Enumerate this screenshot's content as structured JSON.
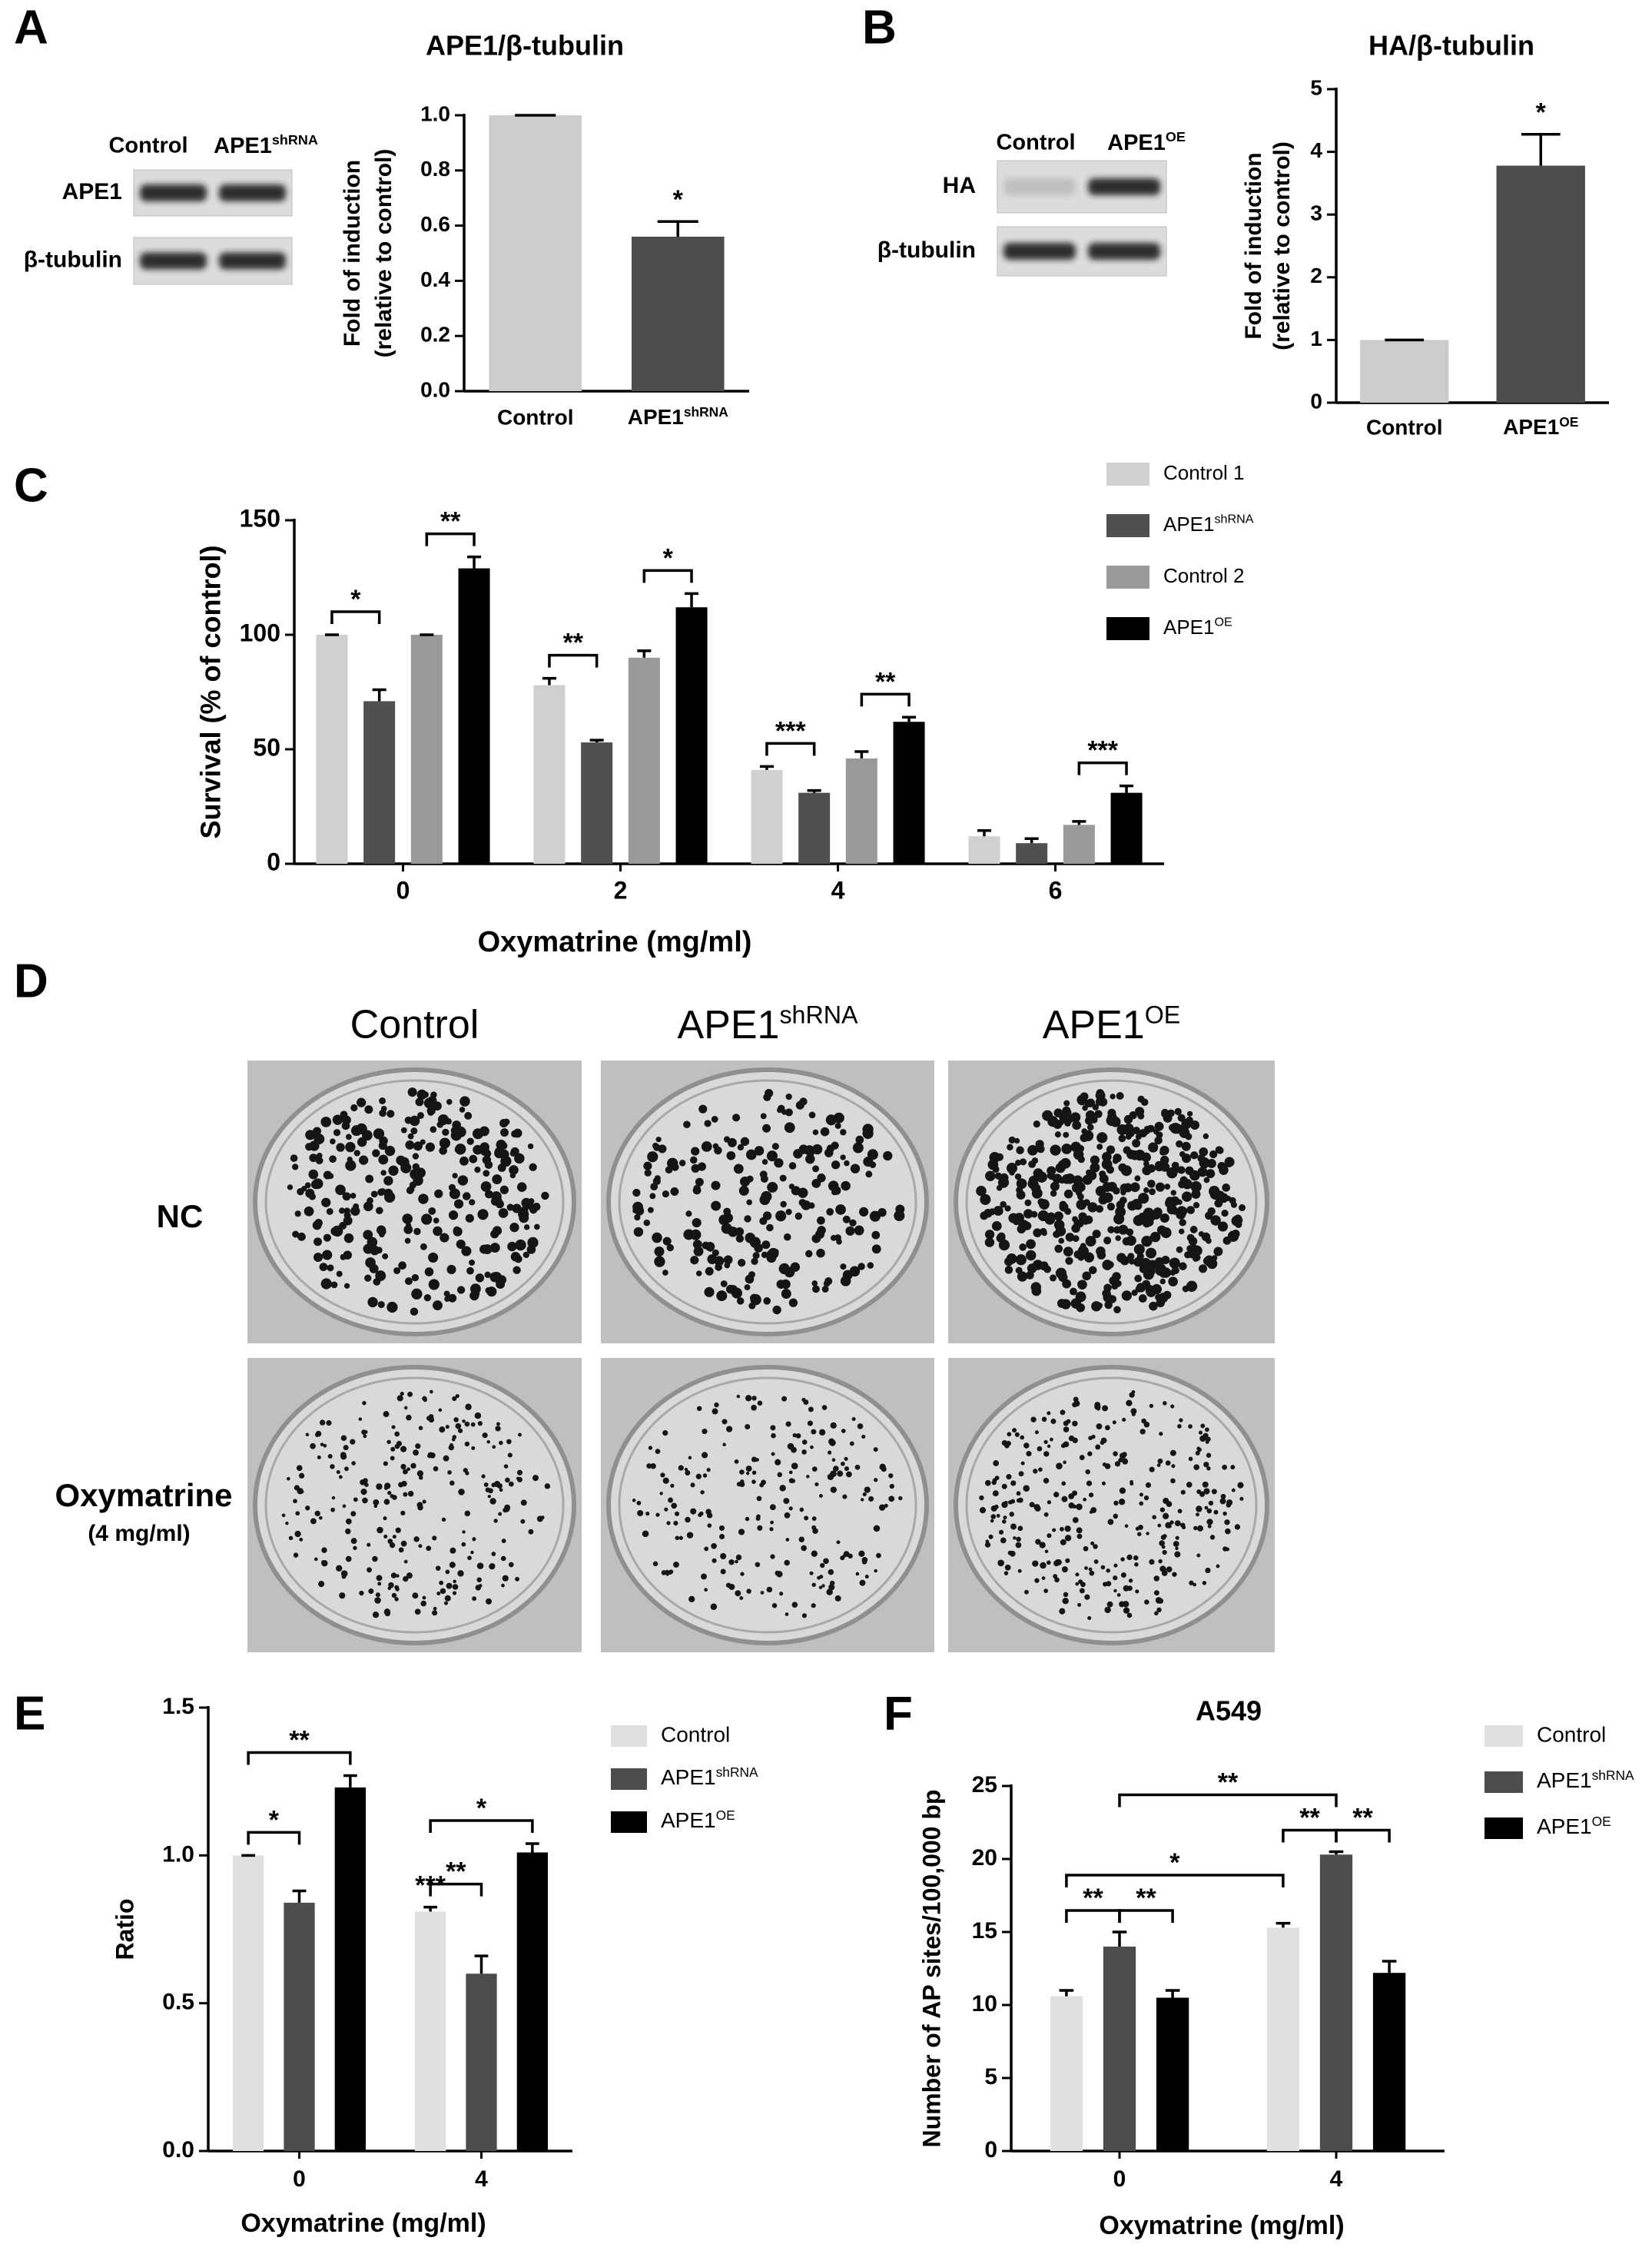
{
  "panels": [
    "A",
    "B",
    "C",
    "D",
    "E",
    "F"
  ],
  "blots": [
    {
      "lanes": [
        "Control",
        {
          "text": "APE1",
          "sup": "shRNA"
        }
      ],
      "rows": [
        "APE1",
        "β-tubulin"
      ]
    },
    {
      "lanes": [
        "Control",
        {
          "text": "APE1",
          "sup": "OE"
        }
      ],
      "rows": [
        "HA",
        "β-tubulin"
      ]
    }
  ],
  "plates": {
    "columns": [
      "Control",
      {
        "text": "APE1",
        "sup": "shRNA"
      },
      {
        "text": "APE1",
        "sup": "OE"
      }
    ],
    "rows": [
      "NC",
      [
        "Oxymatrine",
        "(4 mg/ml)"
      ]
    ]
  },
  "chart_data": [
    {
      "type": "bar",
      "title": "APE1/β-tubulin",
      "ylabel": [
        "Fold of induction",
        "(relative to control)"
      ],
      "categories": [
        "Control",
        {
          "text": "APE1",
          "sup": "shRNA"
        }
      ],
      "values": [
        1.0,
        0.56
      ],
      "errors": [
        0,
        0.055
      ],
      "colors": [
        "#cccccc",
        "#4d4d4d"
      ],
      "ylim": [
        0,
        1
      ],
      "yticks": [
        {
          "value": 0,
          "label": "0.0"
        },
        0.2,
        0.4,
        0.6,
        0.8,
        {
          "value": 1,
          "label": "1.0"
        }
      ],
      "annotations": [
        {
          "category": 1,
          "label": "*"
        }
      ]
    },
    {
      "type": "bar",
      "title": "HA/β-tubulin",
      "ylabel": [
        "Fold of induction",
        "(relative to control)"
      ],
      "categories": [
        "Control",
        {
          "text": "APE1",
          "sup": "OE"
        }
      ],
      "values": [
        1,
        3.78
      ],
      "errors": [
        0,
        0.5
      ],
      "colors": [
        "#cccccc",
        "#4d4d4d"
      ],
      "ylim": [
        0,
        5
      ],
      "yticks": [
        0,
        1,
        2,
        3,
        4,
        5
      ],
      "annotations": [
        {
          "category": 1,
          "label": "*"
        }
      ]
    },
    {
      "type": "bar",
      "ylabel": "Survival (% of control)",
      "xlabel": "Oxymatrine (mg/ml)",
      "categories": [
        "0",
        "2",
        "4",
        "6"
      ],
      "series": [
        {
          "name": "Control 1",
          "color": "#d0d0d0",
          "values": [
            100,
            78,
            41,
            12
          ],
          "errors": [
            0,
            3,
            1.5,
            2.5
          ]
        },
        {
          "name": {
            "text": "APE1",
            "sup": "shRNA"
          },
          "color": "#505050",
          "values": [
            71,
            53,
            31,
            9
          ],
          "errors": [
            5,
            1,
            1,
            2
          ]
        },
        {
          "name": "Control 2",
          "color": "#999999",
          "values": [
            100,
            90,
            46,
            17
          ],
          "errors": [
            0,
            3,
            3,
            1.5
          ]
        },
        {
          "name": {
            "text": "APE1",
            "sup": "OE"
          },
          "color": "#000000",
          "values": [
            129,
            112,
            62,
            31
          ],
          "errors": [
            5,
            6,
            2,
            3
          ]
        }
      ],
      "ylim": [
        0,
        150
      ],
      "yticks": [
        0,
        50,
        100,
        150
      ],
      "comparisons": [
        {
          "from": [
            0,
            0
          ],
          "to": [
            0,
            1
          ],
          "label": "*"
        },
        {
          "from": [
            0,
            2
          ],
          "to": [
            0,
            3
          ],
          "label": "**"
        },
        {
          "from": [
            1,
            0
          ],
          "to": [
            1,
            1
          ],
          "label": "**"
        },
        {
          "from": [
            1,
            2
          ],
          "to": [
            1,
            3
          ],
          "label": "*"
        },
        {
          "from": [
            2,
            0
          ],
          "to": [
            2,
            1
          ],
          "label": "***"
        },
        {
          "from": [
            2,
            2
          ],
          "to": [
            2,
            3
          ],
          "label": "**"
        },
        {
          "from": [
            3,
            2
          ],
          "to": [
            3,
            3
          ],
          "label": "***"
        }
      ]
    },
    {
      "type": "bar",
      "ylabel": "Ratio",
      "xlabel": "Oxymatrine (mg/ml)",
      "categories": [
        "0",
        "4"
      ],
      "series": [
        {
          "name": "Control",
          "color": "#e0e0e0",
          "values": [
            1.0,
            0.81
          ],
          "errors": [
            0,
            0.015
          ]
        },
        {
          "name": {
            "text": "APE1",
            "sup": "shRNA"
          },
          "color": "#4d4d4d",
          "values": [
            0.84,
            0.6
          ],
          "errors": [
            0.04,
            0.06
          ]
        },
        {
          "name": {
            "text": "APE1",
            "sup": "OE"
          },
          "color": "#000000",
          "values": [
            1.23,
            1.01
          ],
          "errors": [
            0.04,
            0.03
          ]
        }
      ],
      "ylim": [
        0,
        1.5
      ],
      "yticks": [
        {
          "value": 0,
          "label": "0.0"
        },
        0.5,
        {
          "value": 1,
          "label": "1.0"
        },
        1.5
      ],
      "annotations": [
        {
          "series": 0,
          "category": 1,
          "label": "***"
        }
      ],
      "comparisons": [
        {
          "from": [
            0,
            0
          ],
          "to": [
            0,
            1
          ],
          "label": "*"
        },
        {
          "from": [
            0,
            0
          ],
          "to": [
            0,
            2
          ],
          "label": "**"
        },
        {
          "from": [
            1,
            0
          ],
          "to": [
            1,
            1
          ],
          "label": "**"
        },
        {
          "from": [
            1,
            0
          ],
          "to": [
            1,
            2
          ],
          "label": "*"
        }
      ]
    },
    {
      "type": "bar",
      "title": "A549",
      "ylabel": "Number of AP sites/100,000 bp",
      "xlabel": "Oxymatrine (mg/ml)",
      "categories": [
        "0",
        "4"
      ],
      "series": [
        {
          "name": "Control",
          "color": "#e0e0e0",
          "values": [
            10.6,
            15.3
          ],
          "errors": [
            0.4,
            0.3
          ]
        },
        {
          "name": {
            "text": "APE1",
            "sup": "shRNA"
          },
          "color": "#4d4d4d",
          "values": [
            14,
            20.3
          ],
          "errors": [
            1,
            0.2
          ]
        },
        {
          "name": {
            "text": "APE1",
            "sup": "OE"
          },
          "color": "#000000",
          "values": [
            10.5,
            12.2
          ],
          "errors": [
            0.5,
            0.8
          ]
        }
      ],
      "ylim": [
        0,
        25
      ],
      "yticks": [
        0,
        5,
        10,
        15,
        20,
        25
      ],
      "comparisons": [
        {
          "from": [
            0,
            0
          ],
          "to": [
            0,
            1
          ],
          "label": "**"
        },
        {
          "from": [
            0,
            1
          ],
          "to": [
            0,
            2
          ],
          "label": "**"
        },
        {
          "from": [
            1,
            0
          ],
          "to": [
            1,
            1
          ],
          "label": "**"
        },
        {
          "from": [
            1,
            1
          ],
          "to": [
            1,
            2
          ],
          "label": "**"
        },
        {
          "from": [
            0,
            0
          ],
          "to": [
            1,
            0
          ],
          "label": "*"
        },
        {
          "from": [
            0,
            1
          ],
          "to": [
            1,
            1
          ],
          "label": "**"
        }
      ]
    }
  ]
}
